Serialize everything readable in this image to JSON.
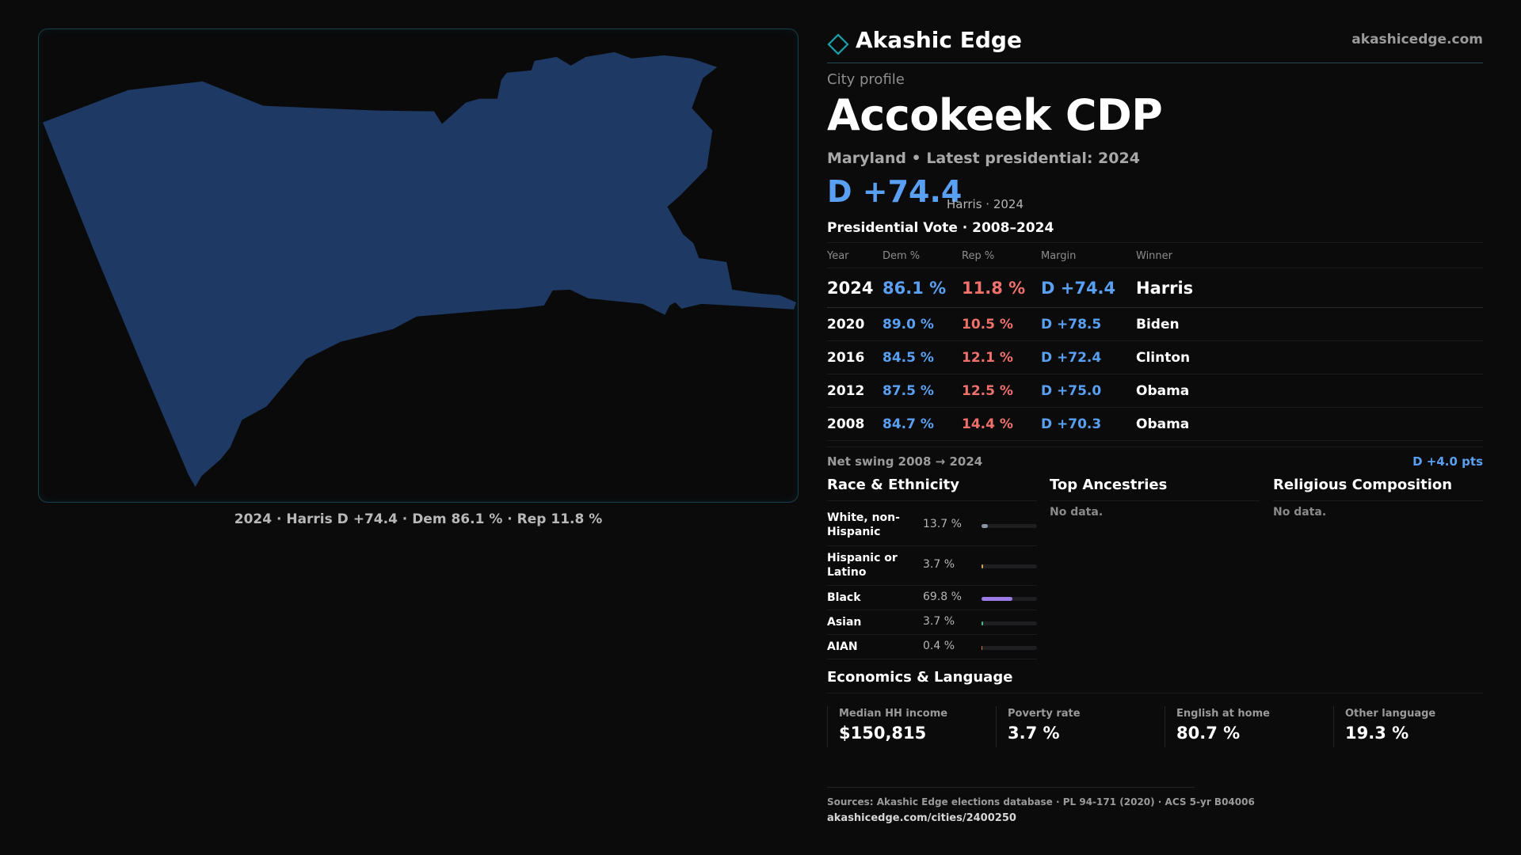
{
  "brand": {
    "name": "Akashic Edge",
    "site": "akashicedge.com",
    "logo_icon": "diamond-icon"
  },
  "profile": {
    "eyebrow": "City profile",
    "title": "Accokeek CDP",
    "subtitle": "Maryland • Latest presidential: 2024",
    "big_margin": "D +74.4",
    "big_margin_note": "Harris · 2024"
  },
  "map": {
    "caption": "2024 · Harris D +74.4 · Dem 86.1 % · Rep 11.8 %",
    "fill_color": "#1e3a64",
    "border_color": "#164148"
  },
  "vote_table": {
    "title": "Presidential Vote · 2008–2024",
    "headers": {
      "year": "Year",
      "dem": "Dem %",
      "rep": "Rep %",
      "margin": "Margin",
      "winner": "Winner"
    },
    "rows": [
      {
        "year": "2024",
        "dem": "86.1 %",
        "rep": "11.8 %",
        "margin": "D +74.4",
        "winner": "Harris"
      },
      {
        "year": "2020",
        "dem": "89.0 %",
        "rep": "10.5 %",
        "margin": "D +78.5",
        "winner": "Biden"
      },
      {
        "year": "2016",
        "dem": "84.5 %",
        "rep": "12.1 %",
        "margin": "D +72.4",
        "winner": "Clinton"
      },
      {
        "year": "2012",
        "dem": "87.5 %",
        "rep": "12.5 %",
        "margin": "D +75.0",
        "winner": "Obama"
      },
      {
        "year": "2008",
        "dem": "84.7 %",
        "rep": "14.4 %",
        "margin": "D +70.3",
        "winner": "Obama"
      }
    ],
    "swing_label": "Net swing 2008 → 2024",
    "swing_value": "D +4.0 pts"
  },
  "race": {
    "title": "Race & Ethnicity",
    "rows": [
      {
        "label": "White, non-Hispanic",
        "pct": "13.7 %",
        "fraction": 0.137,
        "color": "#8a94a6"
      },
      {
        "label": "Hispanic or Latino",
        "pct": "3.7 %",
        "fraction": 0.037,
        "color": "#e0a23a"
      },
      {
        "label": "Black",
        "pct": "69.8 %",
        "fraction": 0.698,
        "color": "#9b7be8"
      },
      {
        "label": "Asian",
        "pct": "3.7 %",
        "fraction": 0.037,
        "color": "#3cc0a0"
      },
      {
        "label": "AIAN",
        "pct": "0.4 %",
        "fraction": 0.004,
        "color": "#d9784a"
      }
    ]
  },
  "ancestries": {
    "title": "Top Ancestries",
    "empty": "No data."
  },
  "religion": {
    "title": "Religious Composition",
    "empty": "No data."
  },
  "economics": {
    "title": "Economics & Language",
    "cards": [
      {
        "label": "Median HH income",
        "value": "$150,815"
      },
      {
        "label": "Poverty rate",
        "value": "3.7 %"
      },
      {
        "label": "English at home",
        "value": "80.7 %"
      },
      {
        "label": "Other language",
        "value": "19.3 %"
      }
    ]
  },
  "footer": {
    "sources": "Sources: Akashic Edge elections database · PL 94-171 (2020) · ACS 5-yr B04006",
    "url": "akashicedge.com/cities/2400250"
  }
}
